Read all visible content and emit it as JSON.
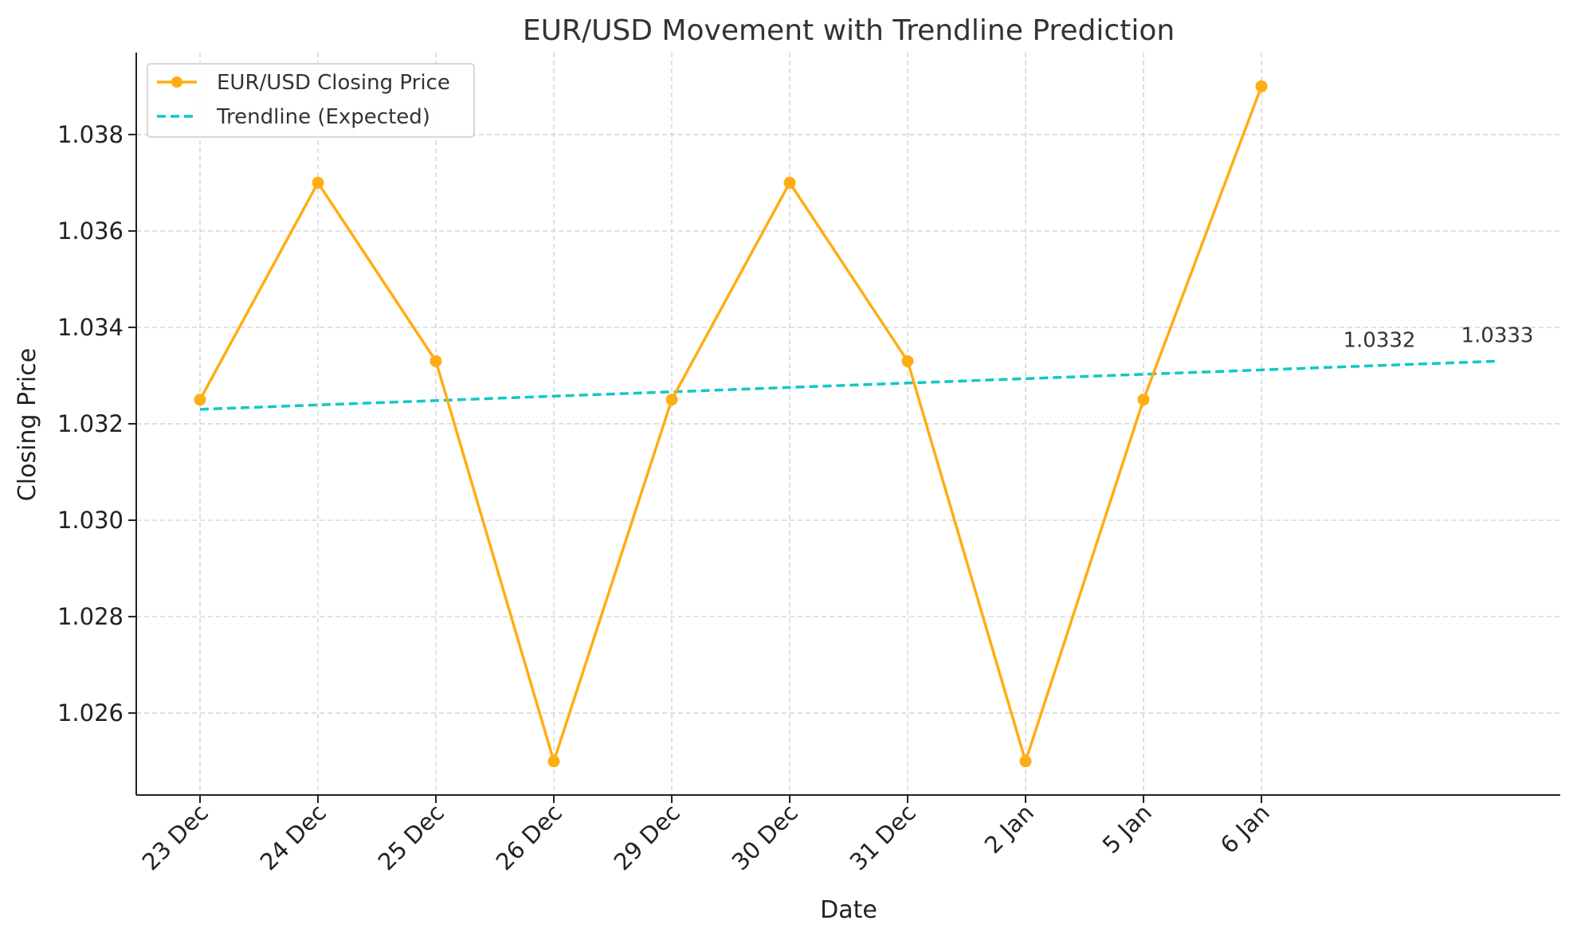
{
  "colors": {
    "price": "#ffad14",
    "trend": "#12c7c7",
    "axis": "#222222",
    "grid": "#cccccc"
  },
  "chart_data": {
    "type": "line",
    "title": "EUR/USD Movement with Trendline Prediction",
    "xlabel": "Date",
    "ylabel": "Closing Price",
    "categories": [
      "23 Dec",
      "24 Dec",
      "25 Dec",
      "26 Dec",
      "29 Dec",
      "30 Dec",
      "31 Dec",
      "2 Jan",
      "5 Jan",
      "6 Jan"
    ],
    "y_ticks": [
      "1.026",
      "1.028",
      "1.030",
      "1.032",
      "1.034",
      "1.036",
      "1.038"
    ],
    "ylim": [
      1.0243,
      1.0397
    ],
    "grid": true,
    "legend_position": "top-left",
    "series": [
      {
        "name": "EUR/USD Closing Price",
        "style": "solid-with-markers",
        "values": [
          1.0325,
          1.037,
          1.0333,
          1.025,
          1.0325,
          1.037,
          1.0333,
          1.025,
          1.0325,
          1.039
        ]
      },
      {
        "name": "Trendline (Expected)",
        "style": "dashed",
        "x_index_range": [
          0,
          11
        ],
        "values_start_end": [
          1.0323,
          1.0333
        ]
      }
    ],
    "annotations": [
      {
        "text": "1.0332",
        "x_index": 10,
        "y": 1.0332
      },
      {
        "text": "1.0333",
        "x_index": 11,
        "y": 1.0333
      }
    ]
  }
}
